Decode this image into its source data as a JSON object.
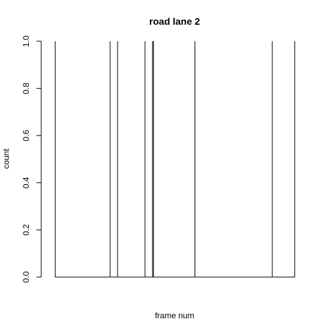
{
  "chart_data": {
    "type": "bar",
    "title": "road lane 2",
    "xlabel": "frame num",
    "ylabel": "count",
    "ylim": [
      0,
      1
    ],
    "y_ticks": [
      "0.0",
      "0.2",
      "0.4",
      "0.6",
      "0.8",
      "1.0"
    ],
    "x_ticks": [],
    "xlim": [
      0,
      100
    ],
    "x": [
      2,
      24,
      27,
      38,
      41,
      41.4,
      58,
      89,
      98
    ],
    "values": [
      1,
      1,
      1,
      1,
      1,
      1,
      1,
      1,
      1
    ],
    "grid": false,
    "legend": "none",
    "color": "#000000"
  }
}
